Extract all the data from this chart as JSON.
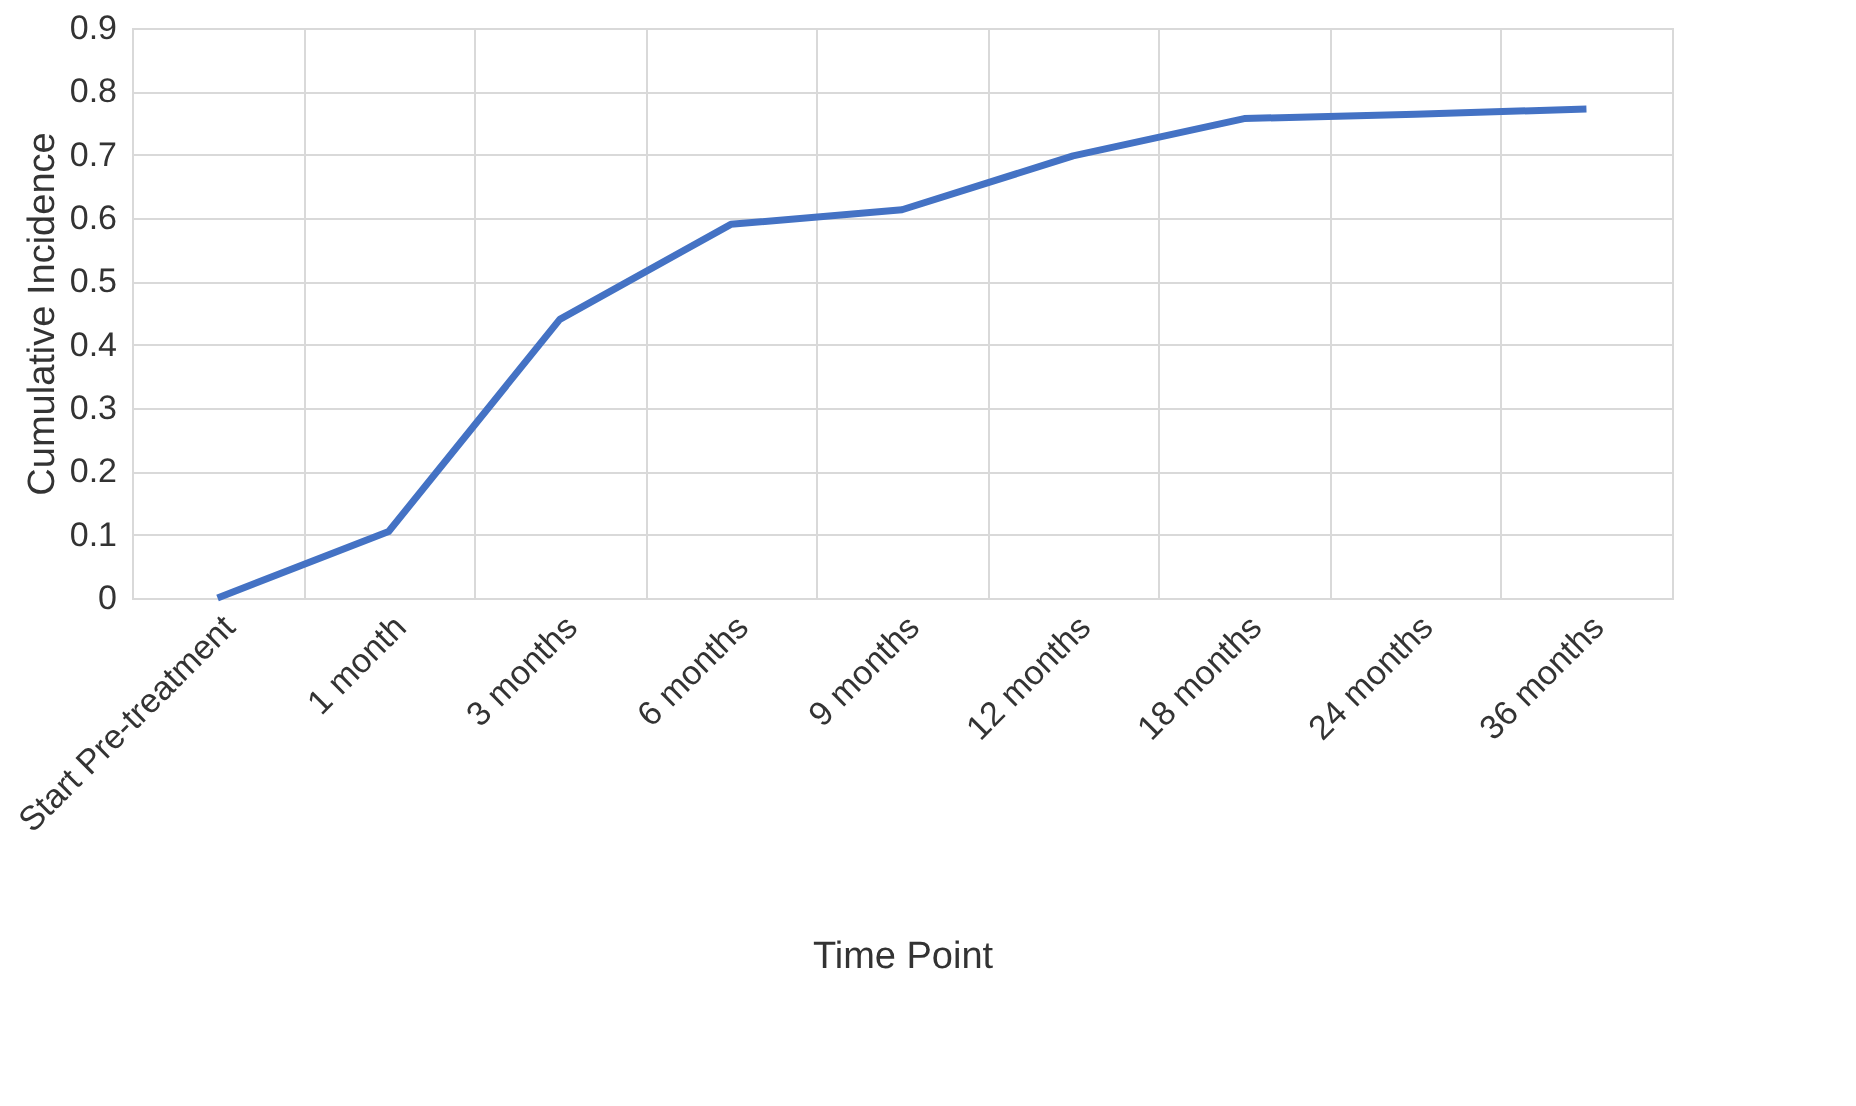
{
  "chart_data": {
    "type": "line",
    "xlabel": "Time Point",
    "ylabel": "Cumulative Incidence",
    "categories": [
      "Start Pre-treatment",
      "1 month",
      "3 months",
      "6 months",
      "9 months",
      "12 months",
      "18 months",
      "24 months",
      "36 months"
    ],
    "series": [
      {
        "color": "#4472c4",
        "values": [
          0,
          0.105,
          0.44,
          0.59,
          0.613,
          0.698,
          0.757,
          0.764,
          0.772
        ]
      }
    ],
    "ylim": [
      0,
      0.9
    ],
    "yticks": [
      0,
      0.1,
      0.2,
      0.3,
      0.4,
      0.5,
      0.6,
      0.7,
      0.8,
      0.9
    ],
    "grid": true,
    "marker": "none",
    "line_style": "solid"
  }
}
